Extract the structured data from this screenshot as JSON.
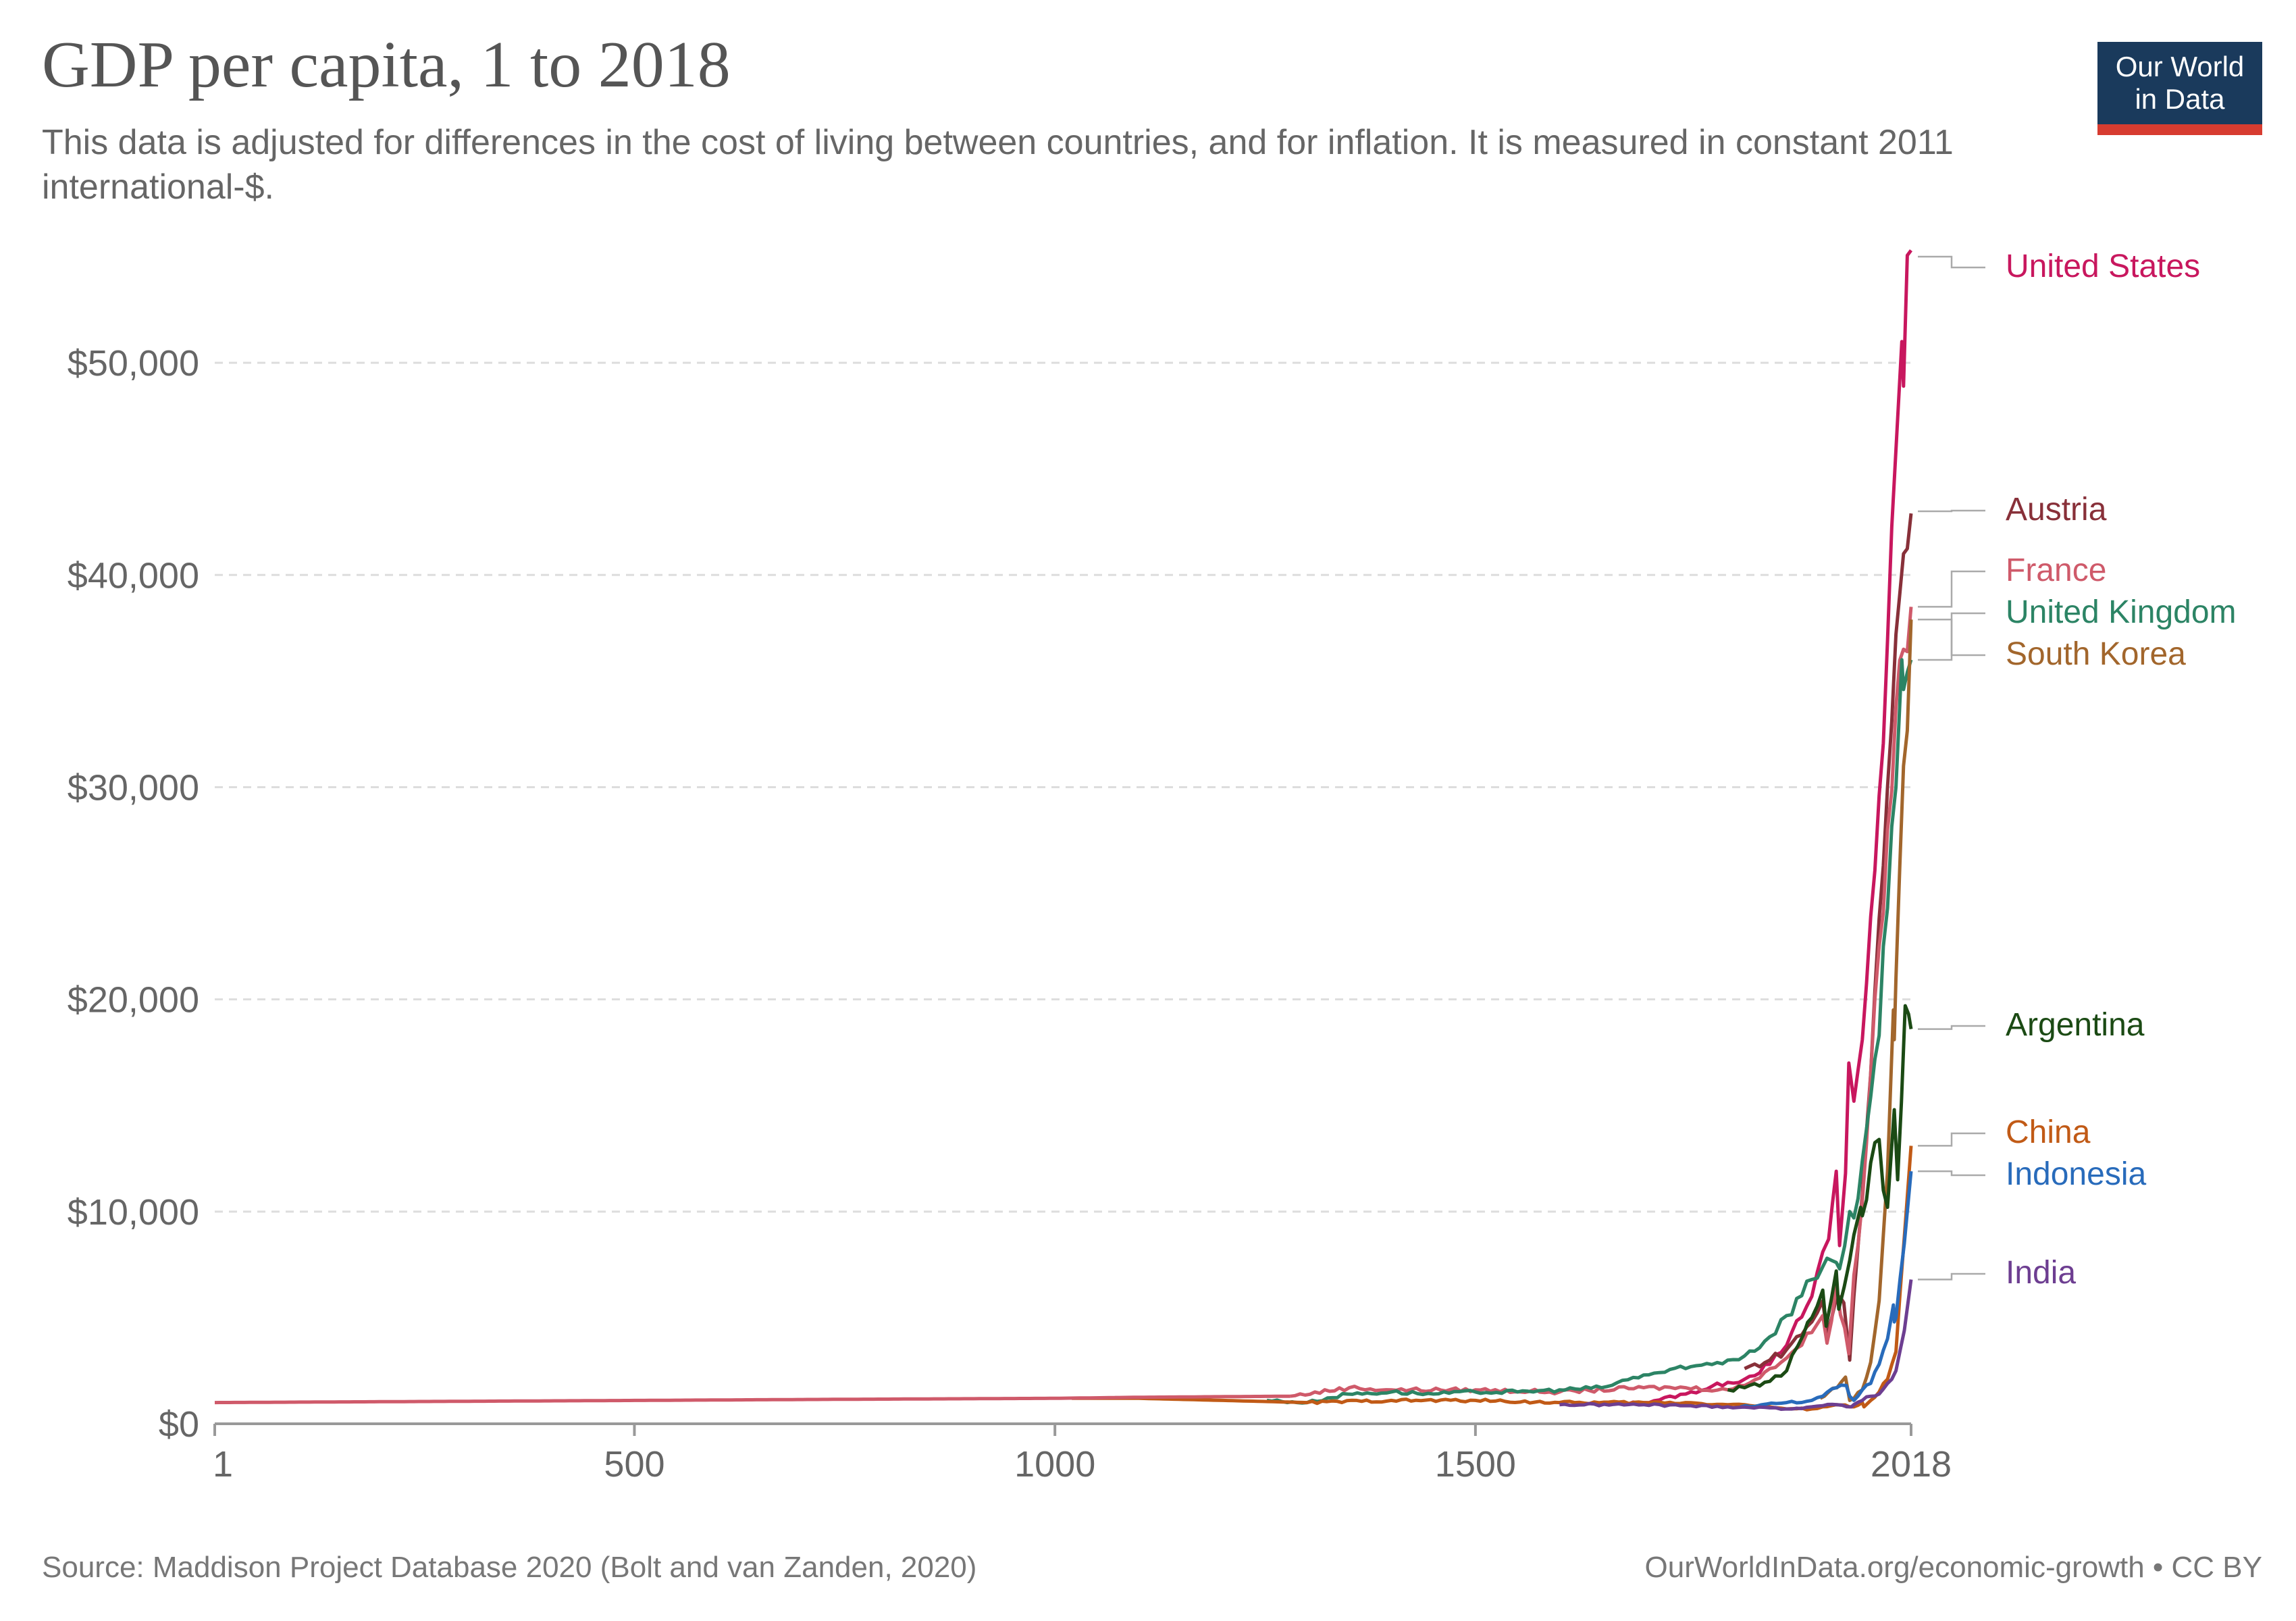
{
  "header": {
    "title": "GDP per capita, 1 to 2018",
    "subtitle": "This data is adjusted for differences in the cost of living between countries, and for inflation. It is measured in constant 2011 international-$."
  },
  "logo": {
    "line1": "Our World",
    "line2": "in Data"
  },
  "footer": {
    "source": "Source: Maddison Project Database 2020 (Bolt and van Zanden, 2020)",
    "credit": "OurWorldInData.org/economic-growth • CC BY"
  },
  "chart_data": {
    "type": "line",
    "title": "GDP per capita, 1 to 2018",
    "xlabel": "",
    "ylabel": "",
    "xlim": [
      1,
      2018
    ],
    "ylim": [
      0,
      55000
    ],
    "x_ticks": [
      {
        "value": 1,
        "label": "1"
      },
      {
        "value": 500,
        "label": "500"
      },
      {
        "value": 1000,
        "label": "1000"
      },
      {
        "value": 1500,
        "label": "1500"
      },
      {
        "value": 2018,
        "label": "2018"
      }
    ],
    "y_ticks": [
      {
        "value": 0,
        "label": "$0"
      },
      {
        "value": 10000,
        "label": "$10,000"
      },
      {
        "value": 20000,
        "label": "$20,000"
      },
      {
        "value": 30000,
        "label": "$30,000"
      },
      {
        "value": 40000,
        "label": "$40,000"
      },
      {
        "value": 50000,
        "label": "$50,000"
      }
    ],
    "grid": "horizontal-dashed",
    "legend": "right-inline",
    "series": [
      {
        "name": "United States",
        "color": "#c8175e",
        "label_value": 55000,
        "x": [
          1650,
          1700,
          1750,
          1800,
          1820,
          1850,
          1870,
          1900,
          1913,
          1920,
          1929,
          1933,
          1940,
          1944,
          1950,
          1960,
          1970,
          1980,
          1990,
          2000,
          2007,
          2009,
          2018
        ],
        "y": [
          900,
          1000,
          1400,
          1950,
          2100,
          2800,
          3700,
          6000,
          8100,
          8700,
          11900,
          8400,
          11800,
          17000,
          15200,
          18100,
          23900,
          29600,
          36900,
          45900,
          51000,
          48900,
          55300
        ]
      },
      {
        "name": "Austria",
        "color": "#883039",
        "label_value": 43000,
        "x": [
          1820,
          1850,
          1870,
          1900,
          1913,
          1918,
          1929,
          1938,
          1945,
          1950,
          1960,
          1970,
          1980,
          1990,
          2000,
          2009,
          2018
        ],
        "y": [
          2600,
          3000,
          3500,
          4800,
          5800,
          4200,
          5900,
          5700,
          3000,
          6000,
          10800,
          16500,
          23800,
          30000,
          37200,
          41000,
          42900
        ]
      },
      {
        "name": "France",
        "color": "#cf5a6a",
        "label_value": 38500,
        "x": [
          1280,
          1350,
          1400,
          1500,
          1600,
          1700,
          1750,
          1800,
          1820,
          1850,
          1870,
          1900,
          1913,
          1918,
          1929,
          1944,
          1950,
          1960,
          1970,
          1980,
          1990,
          2000,
          2009,
          2018
        ],
        "y": [
          1300,
          1700,
          1600,
          1600,
          1500,
          1700,
          1700,
          1600,
          1800,
          2600,
          3100,
          4300,
          5100,
          3800,
          6500,
          3300,
          7000,
          10500,
          16500,
          22500,
          28000,
          33800,
          36500,
          38500
        ]
      },
      {
        "name": "United Kingdom",
        "color": "#2c8465",
        "label_value": 36000,
        "x": [
          1252,
          1300,
          1348,
          1400,
          1450,
          1500,
          1550,
          1600,
          1650,
          1700,
          1750,
          1800,
          1820,
          1850,
          1870,
          1900,
          1913,
          1918,
          1929,
          1933,
          1945,
          1950,
          1960,
          1970,
          1980,
          1990,
          2000,
          2007,
          2009,
          2018
        ],
        "y": [
          1100,
          1000,
          1400,
          1500,
          1400,
          1500,
          1500,
          1600,
          1700,
          2300,
          2600,
          3000,
          3200,
          4100,
          5100,
          6800,
          7400,
          7800,
          7600,
          7300,
          10000,
          9700,
          12400,
          15400,
          18300,
          24300,
          30000,
          36000,
          34600,
          36000
        ]
      },
      {
        "name": "South Korea",
        "color": "#a2662c",
        "label_value": 37900,
        "x": [
          1910,
          1920,
          1930,
          1940,
          1945,
          1950,
          1960,
          1970,
          1980,
          1990,
          1997,
          1998,
          2000,
          2009,
          2018
        ],
        "y": [
          1200,
          1500,
          1700,
          2200,
          1100,
          1200,
          1600,
          2900,
          5800,
          11900,
          19500,
          18100,
          21000,
          31000,
          37900
        ]
      },
      {
        "name": "Argentina",
        "color": "#1b4a14",
        "label_value": 18600,
        "x": [
          1800,
          1820,
          1850,
          1870,
          1890,
          1900,
          1913,
          1917,
          1929,
          1932,
          1945,
          1950,
          1958,
          1960,
          1970,
          1980,
          1985,
          1990,
          1998,
          2002,
          2011,
          2015,
          2018
        ],
        "y": [
          1600,
          1700,
          2000,
          2500,
          4200,
          5000,
          6300,
          4600,
          7200,
          5400,
          7700,
          8900,
          10200,
          9800,
          12300,
          13400,
          11000,
          10200,
          14800,
          11500,
          19700,
          19300,
          18600
        ]
      },
      {
        "name": "China",
        "color": "#c15a16",
        "label_value": 13100,
        "x": [
          1020,
          1100,
          1200,
          1300,
          1400,
          1500,
          1600,
          1700,
          1750,
          1800,
          1820,
          1850,
          1870,
          1900,
          1913,
          1929,
          1950,
          1960,
          1962,
          1970,
          1980,
          1990,
          2000,
          2010,
          2018
        ],
        "y": [
          1200,
          1200,
          1100,
          1000,
          1100,
          1100,
          1000,
          1000,
          1000,
          900,
          900,
          800,
          700,
          700,
          800,
          900,
          800,
          1000,
          800,
          1100,
          1500,
          2100,
          3400,
          8800,
          13100
        ]
      },
      {
        "name": "Indonesia",
        "color": "#286bbb",
        "label_value": 11900,
        "x": [
          1815,
          1870,
          1900,
          1913,
          1929,
          1941,
          1945,
          1950,
          1960,
          1970,
          1980,
          1990,
          1997,
          1998,
          2000,
          2010,
          2018
        ],
        "y": [
          800,
          1000,
          1100,
          1300,
          1700,
          1800,
          1300,
          1100,
          1600,
          1900,
          2800,
          4000,
          5600,
          4800,
          5000,
          8500,
          11900
        ]
      },
      {
        "name": "India",
        "color": "#6d3e91",
        "label_value": 6800,
        "x": [
          1600,
          1700,
          1750,
          1800,
          1850,
          1870,
          1900,
          1913,
          1930,
          1947,
          1950,
          1960,
          1970,
          1980,
          1990,
          2000,
          2010,
          2018
        ],
        "y": [
          900,
          900,
          850,
          800,
          750,
          700,
          800,
          850,
          900,
          800,
          900,
          1100,
          1300,
          1400,
          1900,
          2500,
          4400,
          6800
        ]
      },
      {
        "name": "",
        "color": "#cf5a6a",
        "label_value": null,
        "x": [
          1,
          250,
          500,
          730,
          1000,
          1100,
          1280
        ],
        "y": [
          1000,
          1050,
          1100,
          1150,
          1200,
          1250,
          1300
        ]
      }
    ],
    "label_order": [
      "United States",
      "Austria",
      "France",
      "United Kingdom",
      "South Korea",
      "Argentina",
      "China",
      "Indonesia",
      "India"
    ]
  }
}
